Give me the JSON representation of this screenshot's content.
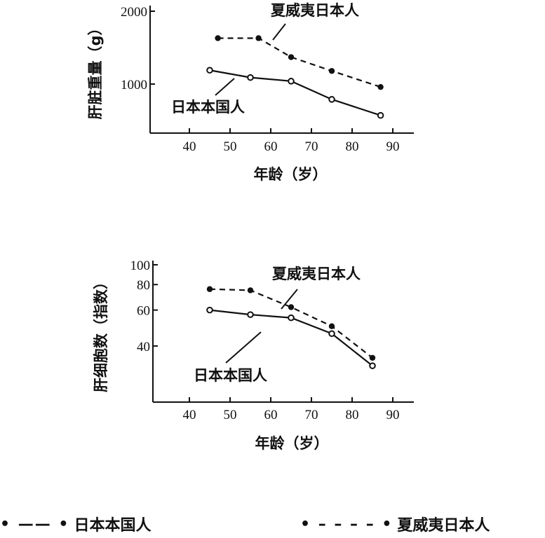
{
  "chart_data": [
    {
      "type": "line",
      "ylabel": "肝脏重量（g）",
      "xlabel": "年龄（岁）",
      "xlim": [
        30,
        95
      ],
      "ylim": [
        500,
        2100
      ],
      "x_ticks": [
        "40",
        "50",
        "60",
        "70",
        "80",
        "90"
      ],
      "y_ticks": [
        "1000",
        "2000"
      ],
      "series": [
        {
          "name": "夏威夷日本人",
          "style": "dashed",
          "marker": "filled",
          "x": [
            47,
            57,
            65,
            75,
            87
          ],
          "values": [
            1630,
            1630,
            1370,
            1180,
            960
          ]
        },
        {
          "name": "日本本国人",
          "style": "solid",
          "marker": "open",
          "x": [
            45,
            55,
            65,
            75,
            87
          ],
          "values": [
            1190,
            1090,
            1040,
            790,
            570
          ]
        }
      ]
    },
    {
      "type": "line",
      "ylabel": "肝细胞数（指数）",
      "xlabel": "年龄（岁）",
      "xlim": [
        30,
        95
      ],
      "ylim": [
        30,
        100
      ],
      "y_scale": "log",
      "x_ticks": [
        "40",
        "50",
        "60",
        "70",
        "80",
        "90"
      ],
      "y_ticks": [
        "100",
        "80",
        "60",
        "40"
      ],
      "series": [
        {
          "name": "夏威夷日本人",
          "style": "dashed",
          "marker": "filled",
          "x": [
            45,
            55,
            65,
            75,
            85
          ],
          "values": [
            76,
            75,
            62,
            50,
            35
          ]
        },
        {
          "name": "日本本国人",
          "style": "solid",
          "marker": "open",
          "x": [
            45,
            55,
            65,
            75,
            85
          ],
          "values": [
            60,
            57,
            55,
            46,
            32
          ]
        }
      ]
    }
  ],
  "legend": [
    {
      "symbol": "• —— •",
      "label": "日本本国人"
    },
    {
      "symbol": "• – – – – •",
      "label": "夏威夷日本人"
    }
  ]
}
